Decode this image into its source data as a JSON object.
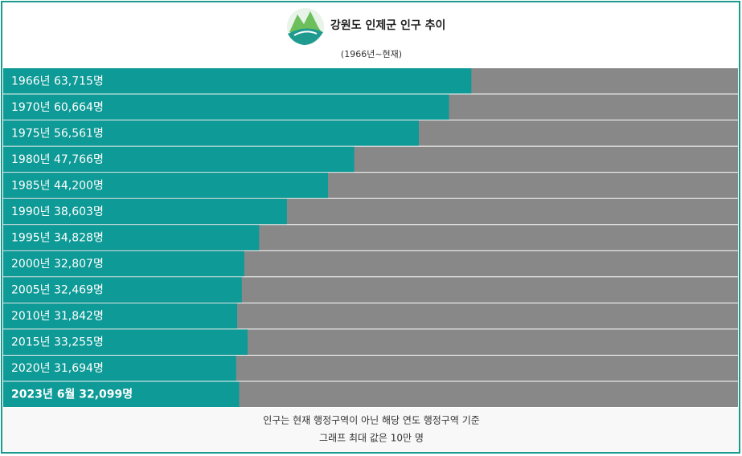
{
  "chart_data": {
    "type": "bar",
    "orientation": "horizontal",
    "title": "강원도 인제군 인구 추이",
    "subtitle": "(1966년~현재)",
    "categories": [
      "1966년",
      "1970년",
      "1975년",
      "1980년",
      "1985년",
      "1990년",
      "1995년",
      "2000년",
      "2005년",
      "2010년",
      "2015년",
      "2020년",
      "2023년 6월"
    ],
    "values": [
      63715,
      60664,
      56561,
      47766,
      44200,
      38603,
      34828,
      32807,
      32469,
      31842,
      33255,
      31694,
      32099
    ],
    "value_labels": [
      "63,715명",
      "60,664명",
      "56,561명",
      "47,766명",
      "44,200명",
      "38,603명",
      "34,828명",
      "32,807명",
      "32,469명",
      "31,842명",
      "33,255명",
      "31,694명",
      "32,099명"
    ],
    "color": "#0e9a96",
    "track_color": "#888888",
    "highlight": 12,
    "xlim": [
      0,
      100000
    ],
    "notes": [
      "인구는 현재 행정구역이 아닌 해당 연도 행정구역 기준",
      "그래프 최대 값은 10만 명"
    ]
  }
}
